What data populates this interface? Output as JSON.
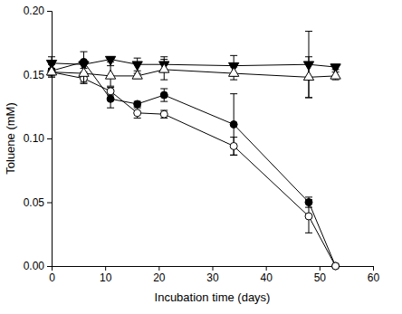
{
  "chart_data": {
    "type": "line",
    "x_label": "Incubation time (days)",
    "y_label": "Toluene (mM)",
    "x": [
      0,
      6,
      11,
      16,
      21,
      34,
      48,
      53
    ],
    "xlim": [
      0,
      60
    ],
    "xticks": [
      0,
      10,
      20,
      30,
      40,
      50,
      60
    ],
    "ylim": [
      0,
      0.2
    ],
    "yticks": [
      {
        "value": 0,
        "label": "0.00"
      },
      {
        "value": 0.05,
        "label": "0.05"
      },
      {
        "value": 0.1,
        "label": "0.10"
      },
      {
        "value": 0.15,
        "label": "0.15"
      },
      {
        "value": 0.2,
        "label": "0.20"
      }
    ],
    "grid": false,
    "series": [
      {
        "color": "#000000",
        "marker": "circle-filled",
        "line_style": "solid",
        "values": [
          0.153,
          0.16,
          0.131,
          0.127,
          0.134,
          0.111,
          0.05,
          0.0
        ],
        "errors": [
          0.005,
          0.008,
          0.007,
          0.002,
          0.005,
          0.024,
          0.004,
          0.0
        ]
      },
      {
        "color": "#000000",
        "marker": "circle-open",
        "line_style": "solid",
        "values": [
          0.152,
          0.147,
          0.137,
          0.12,
          0.119,
          0.094,
          0.039,
          0.0
        ],
        "errors": [
          0.003,
          0.003,
          0.003,
          0.004,
          0.003,
          0.007,
          0.013,
          0.0
        ]
      },
      {
        "color": "#000000",
        "marker": "triangle-down-filled",
        "line_style": "solid",
        "values": [
          0.159,
          0.158,
          0.162,
          0.158,
          0.158,
          0.157,
          0.158,
          0.156
        ],
        "errors": [
          0.005,
          0.003,
          0.002,
          0.005,
          0.006,
          0.008,
          0.026,
          0.002
        ]
      },
      {
        "color": "#000000",
        "marker": "triangle-up-open",
        "line_style": "solid",
        "values": [
          0.152,
          0.151,
          0.149,
          0.149,
          0.154,
          0.151,
          0.148,
          0.149
        ],
        "errors": [
          0.002,
          0.008,
          0.008,
          0.002,
          0.008,
          0.005,
          0.016,
          0.003
        ]
      }
    ]
  }
}
